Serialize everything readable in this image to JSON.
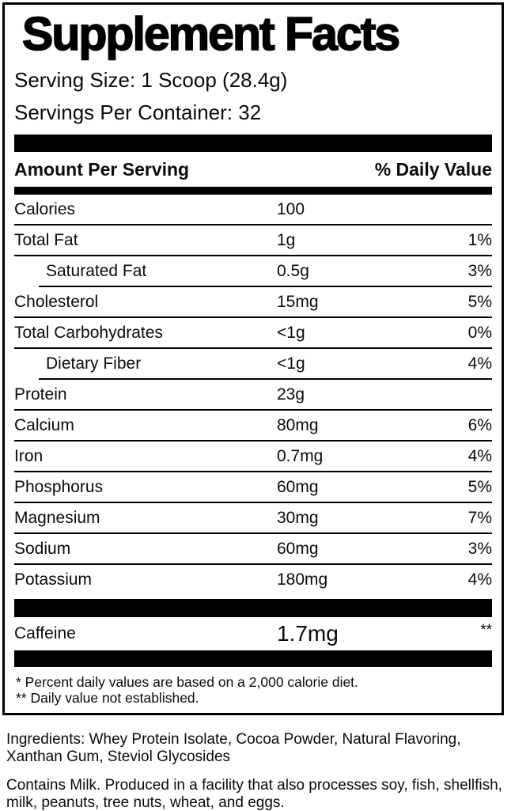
{
  "colors": {
    "text": "#000000",
    "background": "#ffffff",
    "bar": "#000000"
  },
  "label": {
    "title": "Supplement Facts",
    "serving_size": "Serving Size: 1 Scoop (28.4g)",
    "servings_per_container": "Servings Per Container: 32",
    "columns": {
      "amount_header": "Amount Per Serving",
      "daily_value_header": "% Daily Value"
    },
    "rows": [
      {
        "name": "Calories",
        "amount": "100",
        "daily_value": ""
      },
      {
        "name": "Total Fat",
        "amount": "1g",
        "daily_value": "1%"
      },
      {
        "name": "Saturated Fat",
        "amount": "0.5g",
        "daily_value": "3%"
      },
      {
        "name": "Cholesterol",
        "amount": "15mg",
        "daily_value": "5%"
      },
      {
        "name": "Total Carbohydrates",
        "amount": "<1g",
        "daily_value": "0%"
      },
      {
        "name": "Dietary Fiber",
        "amount": "<1g",
        "daily_value": "4%"
      },
      {
        "name": "Protein",
        "amount": "23g",
        "daily_value": ""
      },
      {
        "name": "Calcium",
        "amount": "80mg",
        "daily_value": "6%"
      },
      {
        "name": "Iron",
        "amount": "0.7mg",
        "daily_value": "4%"
      },
      {
        "name": "Phosphorus",
        "amount": "60mg",
        "daily_value": "5%"
      },
      {
        "name": "Magnesium",
        "amount": "30mg",
        "daily_value": "7%"
      },
      {
        "name": "Sodium",
        "amount": "60mg",
        "daily_value": "3%"
      },
      {
        "name": "Potassium",
        "amount": "180mg",
        "daily_value": "4%"
      }
    ],
    "caffeine_row": {
      "name": "Caffeine",
      "amount": "1.7mg",
      "daily_value": "**"
    },
    "footnotes": [
      "* Percent daily values are based on a 2,000 calorie diet.",
      "** Daily value not established."
    ]
  },
  "ingredients": "Ingredients: Whey Protein Isolate, Cocoa Powder, Natural Flavoring,\nXanthan Gum, Steviol Glycosides",
  "allergen_statement": "Contains Milk. Produced in a facility that also processes soy, fish, shellfish,\nmilk, peanuts, tree nuts, wheat, and eggs."
}
